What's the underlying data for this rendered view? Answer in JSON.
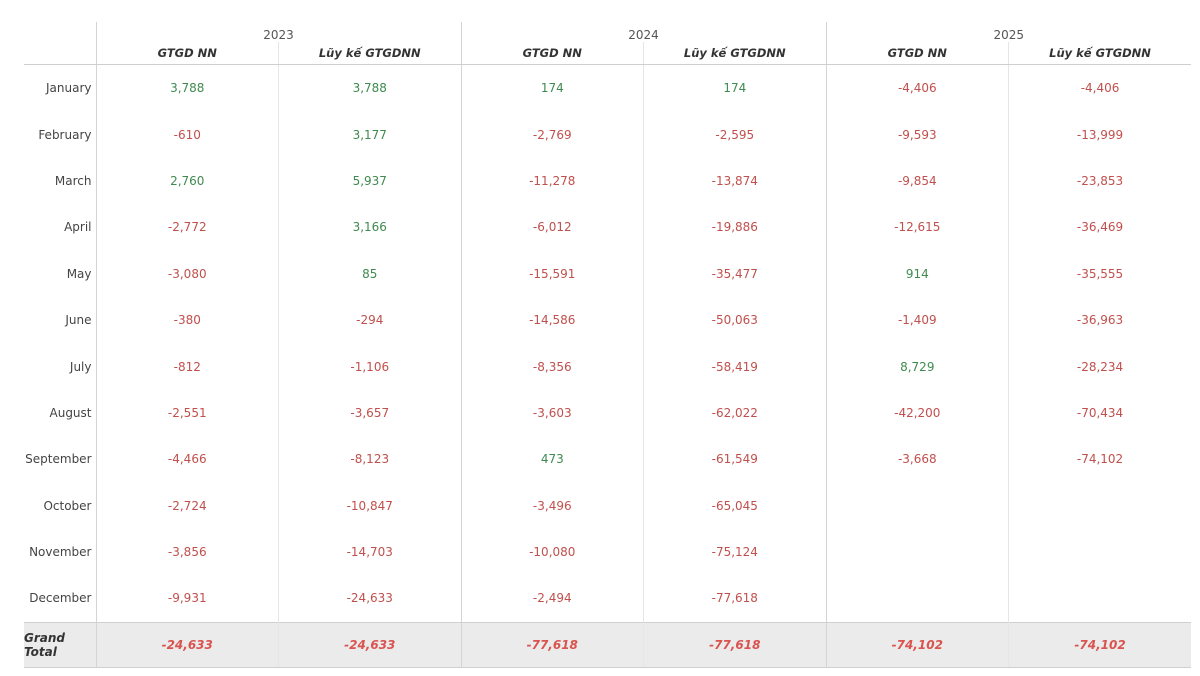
{
  "years": [
    "2023",
    "2024",
    "2025"
  ],
  "sub_headers": [
    "GTGD NN",
    "Lũy kế GTGDNN"
  ],
  "rows": [
    {
      "month": "January",
      "values": [
        "3,788",
        "3,788",
        "174",
        "174",
        "-4,406",
        "-4,406"
      ]
    },
    {
      "month": "February",
      "values": [
        "-610",
        "3,177",
        "-2,769",
        "-2,595",
        "-9,593",
        "-13,999"
      ]
    },
    {
      "month": "March",
      "values": [
        "2,760",
        "5,937",
        "-11,278",
        "-13,874",
        "-9,854",
        "-23,853"
      ]
    },
    {
      "month": "April",
      "values": [
        "-2,772",
        "3,166",
        "-6,012",
        "-19,886",
        "-12,615",
        "-36,469"
      ]
    },
    {
      "month": "May",
      "values": [
        "-3,080",
        "85",
        "-15,591",
        "-35,477",
        "914",
        "-35,555"
      ]
    },
    {
      "month": "June",
      "values": [
        "-380",
        "-294",
        "-14,586",
        "-50,063",
        "-1,409",
        "-36,963"
      ]
    },
    {
      "month": "July",
      "values": [
        "-812",
        "-1,106",
        "-8,356",
        "-58,419",
        "8,729",
        "-28,234"
      ]
    },
    {
      "month": "August",
      "values": [
        "-2,551",
        "-3,657",
        "-3,603",
        "-62,022",
        "-42,200",
        "-70,434"
      ]
    },
    {
      "month": "September",
      "values": [
        "-4,466",
        "-8,123",
        "473",
        "-61,549",
        "-3,668",
        "-74,102"
      ]
    },
    {
      "month": "October",
      "values": [
        "-2,724",
        "-10,847",
        "-3,496",
        "-65,045",
        "",
        ""
      ]
    },
    {
      "month": "November",
      "values": [
        "-3,856",
        "-14,703",
        "-10,080",
        "-75,124",
        "",
        ""
      ]
    },
    {
      "month": "December",
      "values": [
        "-9,931",
        "-24,633",
        "-2,494",
        "-77,618",
        "",
        ""
      ]
    }
  ],
  "total": {
    "label": "Grand Total",
    "values": [
      "-24,633",
      "-24,633",
      "-77,618",
      "-77,618",
      "-74,102",
      "-74,102"
    ]
  },
  "colors": {
    "positive": "#3f8a4f",
    "negative": "#c0504d",
    "total_bg": "#ebebeb"
  }
}
